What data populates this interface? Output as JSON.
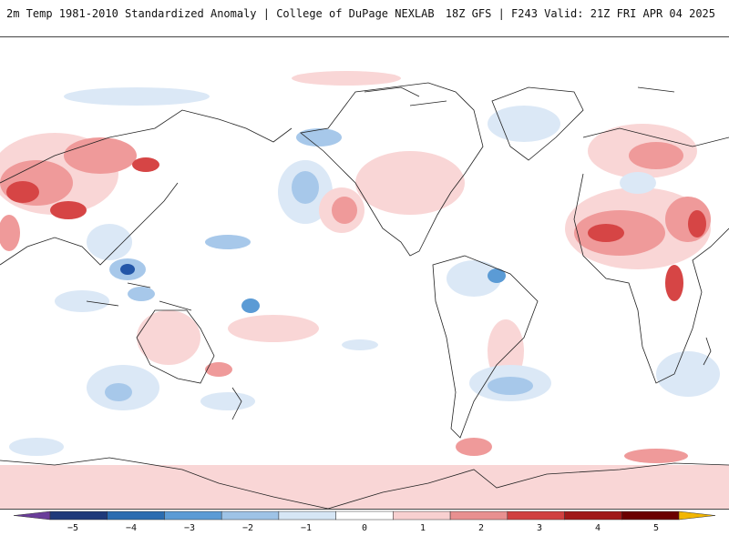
{
  "header": {
    "title_left": "2m Temp 1981-2010 Standardized Anomaly | College of DuPage NEXLAB",
    "title_right": "18Z GFS | F243 Valid: 21Z FRI APR 04 2025"
  },
  "colorbar": {
    "labels": [
      "−5",
      "−4",
      "−3",
      "−2",
      "−1",
      "0",
      "1",
      "2",
      "3",
      "4",
      "5"
    ],
    "colors": [
      "#6a3d9a",
      "#1f3a7a",
      "#2b6cb0",
      "#5b9bd5",
      "#9ec3e6",
      "#d6e6f5",
      "#ffffff",
      "#f8d0d0",
      "#e89090",
      "#d04040",
      "#a01818",
      "#6b0000",
      "#f2b600"
    ]
  },
  "map": {
    "colors": {
      "light_blue": "#dbe8f6",
      "mid_blue": "#a7c8ea",
      "blue": "#5b9bd5",
      "dark_blue": "#2356a8",
      "light_red": "#f9d6d6",
      "mid_red": "#ef9a9a",
      "red": "#d64545",
      "dark_red": "#8b1010",
      "coast": "#222222"
    }
  }
}
